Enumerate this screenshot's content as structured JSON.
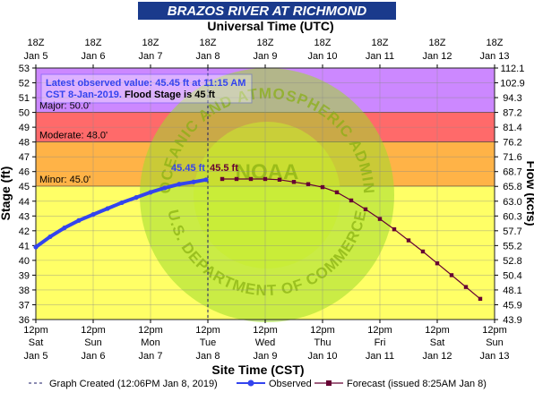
{
  "chart_data": {
    "type": "line",
    "title": "BRAZOS RIVER AT RICHMOND",
    "top_axis_title": "Universal Time (UTC)",
    "bottom_axis_title": "Site Time (CST)",
    "ylabel_left": "Stage (ft)",
    "ylabel_right": "Flow (kcfs)",
    "ylim": [
      36,
      53
    ],
    "y_ticks": [
      36,
      37,
      38,
      39,
      40,
      41,
      42,
      43,
      44,
      45,
      46,
      47,
      48,
      49,
      50,
      51,
      52,
      53
    ],
    "right_ticks": [
      "43.9",
      "45.9",
      "48.1",
      "50.4",
      "52.8",
      "55.2",
      "57.7",
      "60.3",
      "63.0",
      "65.8",
      "68.7",
      "71.6",
      "76.2",
      "81.4",
      "87.2",
      "94.3",
      "102.9",
      "112.1"
    ],
    "x_range_hours": [
      0,
      192
    ],
    "bottom_ticks": [
      {
        "t": "12pm",
        "d": "Sat",
        "e": "Jan 5"
      },
      {
        "t": "12pm",
        "d": "Sun",
        "e": "Jan 6"
      },
      {
        "t": "12pm",
        "d": "Mon",
        "e": "Jan 7"
      },
      {
        "t": "12pm",
        "d": "Tue",
        "e": "Jan 8"
      },
      {
        "t": "12pm",
        "d": "Wed",
        "e": "Jan 9"
      },
      {
        "t": "12pm",
        "d": "Thu",
        "e": "Jan 10"
      },
      {
        "t": "12pm",
        "d": "Fri",
        "e": "Jan 11"
      },
      {
        "t": "12pm",
        "d": "Sat",
        "e": "Jan 12"
      },
      {
        "t": "12pm",
        "d": "Sun",
        "e": "Jan 13"
      }
    ],
    "top_ticks": [
      {
        "t": "18Z",
        "e": "Jan 5"
      },
      {
        "t": "18Z",
        "e": "Jan 6"
      },
      {
        "t": "18Z",
        "e": "Jan 7"
      },
      {
        "t": "18Z",
        "e": "Jan 8"
      },
      {
        "t": "18Z",
        "e": "Jan 9"
      },
      {
        "t": "18Z",
        "e": "Jan 10"
      },
      {
        "t": "18Z",
        "e": "Jan 11"
      },
      {
        "t": "18Z",
        "e": "Jan 12"
      },
      {
        "t": "18Z",
        "e": "Jan 13"
      }
    ],
    "flood_categories": [
      {
        "label": "Major: 50.0'",
        "from": 50,
        "to": 53,
        "color": "#cc88ff"
      },
      {
        "label": "Moderate: 48.0'",
        "from": 48,
        "to": 50,
        "color": "#ff6a6a"
      },
      {
        "label": "Minor: 45.0'",
        "from": 45,
        "to": 48,
        "color": "#ffb347"
      },
      {
        "label": "",
        "from": 36,
        "to": 45,
        "color": "#ffff66"
      }
    ],
    "series": [
      {
        "name": "Observed",
        "color": "#3344ee",
        "x": [
          0,
          6,
          12,
          18,
          24,
          30,
          36,
          42,
          48,
          54,
          60,
          66,
          71.25
        ],
        "y": [
          40.9,
          41.6,
          42.2,
          42.7,
          43.1,
          43.5,
          43.9,
          44.25,
          44.6,
          44.9,
          45.15,
          45.3,
          45.45
        ]
      },
      {
        "name": "Forecast",
        "color": "#660033",
        "x": [
          78,
          84,
          90,
          96,
          102,
          108,
          114,
          120,
          126,
          132,
          138,
          144,
          150,
          156,
          162,
          168,
          174,
          180,
          186
        ],
        "y": [
          45.5,
          45.5,
          45.5,
          45.5,
          45.45,
          45.3,
          45.15,
          44.95,
          44.6,
          44.05,
          43.45,
          42.8,
          42.1,
          41.35,
          40.6,
          39.8,
          39.0,
          38.2,
          37.4
        ]
      }
    ],
    "observed_label": "45.45 ft",
    "forecast_label": "45.5 ft",
    "graph_created_hour": 72,
    "info_box": {
      "prefix": "Latest observed value:",
      "value": "45.45 ft at 11:15 AM",
      "date": "CST 8-Jan-2019.",
      "flood_text": "Flood Stage is 45 ft"
    },
    "legend": {
      "created": "Graph Created (12:06PM Jan 8, 2019)",
      "observed": "Observed",
      "forecast": "Forecast (issued 8:25AM Jan 8)"
    },
    "watermark_text": "NATIONAL OCEANIC AND ATMOSPHERIC ADMINISTRATION",
    "watermark_lower": "U.S. DEPARTMENT OF COMMERCE",
    "watermark_center": "NOAA",
    "colors": {
      "title_bar": "#1a3a8c",
      "border": "#222222"
    }
  }
}
